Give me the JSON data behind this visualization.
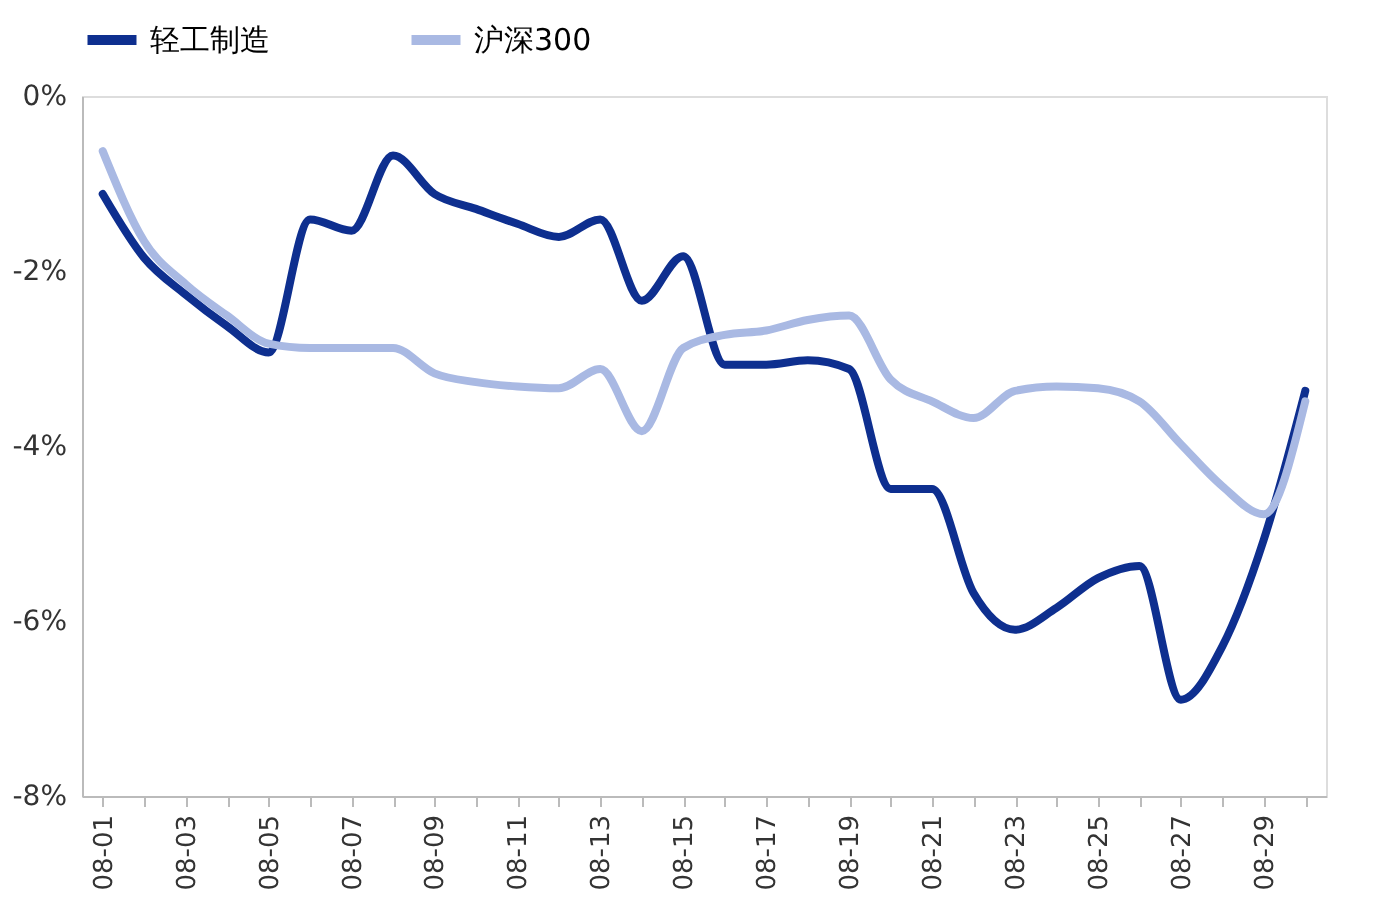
{
  "chart_data": {
    "type": "line",
    "categories": [
      "08-01",
      null,
      "08-03",
      null,
      "08-05",
      null,
      "08-07",
      null,
      "08-09",
      null,
      "08-11",
      null,
      "08-13",
      null,
      "08-15",
      null,
      "08-17",
      null,
      "08-19",
      null,
      "08-21",
      null,
      "08-23",
      null,
      "08-25",
      null,
      "08-27",
      null,
      "08-29",
      null
    ],
    "series": [
      {
        "name": "轻工制造",
        "color": "#0e2f8f",
        "values": [
          -1.12,
          -1.85,
          -2.27,
          -2.63,
          -2.93,
          -1.41,
          -1.54,
          -0.68,
          -1.12,
          -1.29,
          -1.46,
          -1.61,
          -1.41,
          -2.34,
          -1.83,
          -3.07,
          -3.07,
          -3.02,
          -3.12,
          -4.49,
          -4.49,
          -5.68,
          -6.1,
          -5.85,
          -5.51,
          -5.37,
          -6.9,
          -6.29,
          -5.07,
          -3.37
        ]
      },
      {
        "name": "沪深300",
        "color": "#a9b9e3",
        "values": [
          -0.63,
          -1.66,
          -2.15,
          -2.51,
          -2.83,
          -2.88,
          -2.88,
          -2.88,
          -3.17,
          -3.27,
          -3.32,
          -3.34,
          -3.12,
          -3.83,
          -2.88,
          -2.73,
          -2.68,
          -2.56,
          -2.51,
          -3.24,
          -3.49,
          -3.68,
          -3.37,
          -3.32,
          -3.34,
          -3.49,
          -3.98,
          -4.46,
          -4.78,
          -3.49
        ]
      }
    ],
    "ylim": [
      -8,
      0
    ],
    "yticks": [
      {
        "value": 0,
        "label": "0%"
      },
      {
        "value": -2,
        "label": "-2%"
      },
      {
        "value": -4,
        "label": "-4%"
      },
      {
        "value": -6,
        "label": "-6%"
      },
      {
        "value": -8,
        "label": "-8%"
      }
    ],
    "grid": false,
    "legend": "top",
    "marker": "none",
    "line_style": "solid"
  }
}
